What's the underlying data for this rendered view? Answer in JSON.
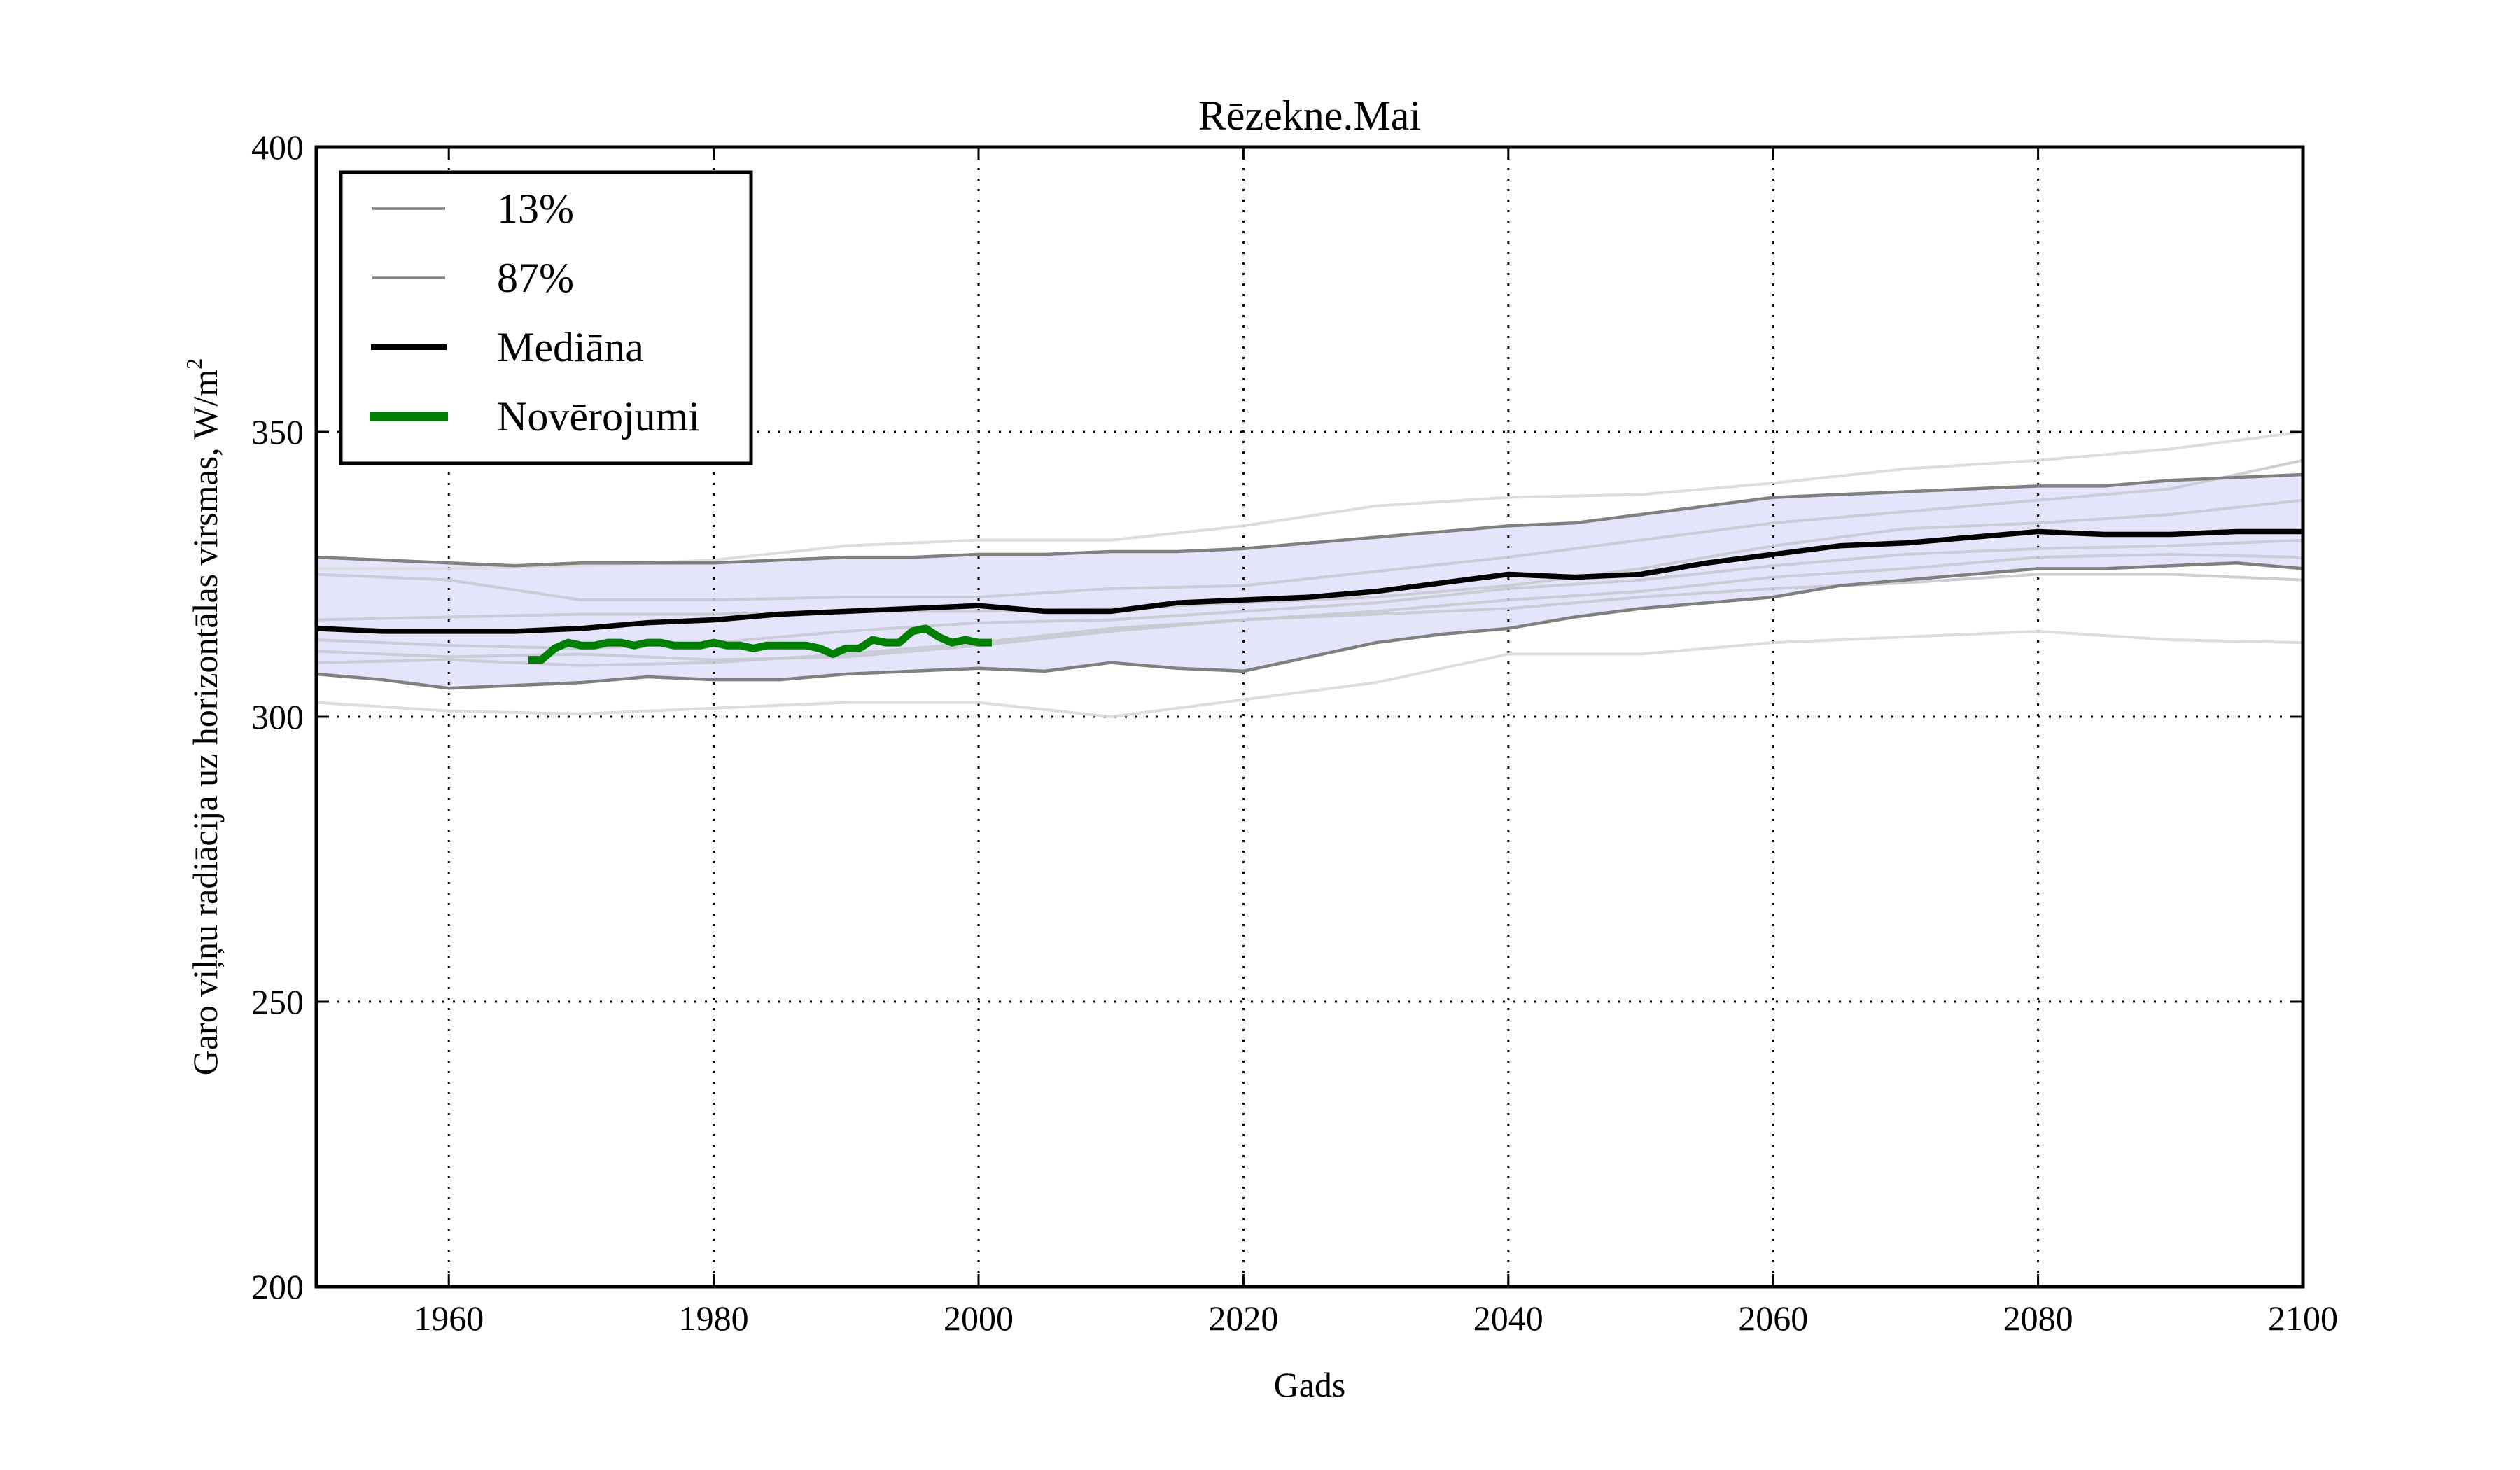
{
  "chart_data": {
    "type": "line",
    "title": "Rēzekne.Mai",
    "xlabel": "Gads",
    "ylabel": "Garo viļņu radiācija uz horizontālas virsmas, W/m",
    "ylabel_superscript": "2",
    "xlim": [
      1950,
      2100
    ],
    "ylim": [
      200,
      400
    ],
    "x_ticks": [
      1960,
      1980,
      2000,
      2020,
      2040,
      2060,
      2080,
      2100
    ],
    "x_tick_labels": [
      "1960",
      "1980",
      "2000",
      "2020",
      "2040",
      "2060",
      "2080",
      "2100"
    ],
    "y_ticks": [
      200,
      250,
      300,
      350,
      400
    ],
    "y_tick_labels": [
      "200",
      "250",
      "300",
      "350",
      "400"
    ],
    "grid": true,
    "legend_position": "top-left",
    "band_color": "#e4e4fb",
    "series": [
      {
        "name": "13%",
        "color": "#808080",
        "x": [
          1950,
          1955,
          1960,
          1965,
          1970,
          1975,
          1980,
          1985,
          1990,
          1995,
          2000,
          2005,
          2010,
          2015,
          2020,
          2025,
          2030,
          2035,
          2040,
          2045,
          2050,
          2055,
          2060,
          2065,
          2070,
          2075,
          2080,
          2085,
          2090,
          2095,
          2100
        ],
        "values": [
          307.5,
          306.5,
          305.0,
          305.5,
          306.0,
          307.0,
          306.5,
          306.5,
          307.5,
          308.0,
          308.5,
          308.0,
          309.5,
          308.5,
          308.0,
          310.5,
          313.0,
          314.5,
          315.5,
          317.5,
          319.0,
          320.0,
          321.0,
          323.0,
          324.0,
          325.0,
          326.0,
          326.0,
          326.5,
          327.0,
          326.0
        ]
      },
      {
        "name": "87%",
        "color": "#808080",
        "x": [
          1950,
          1955,
          1960,
          1965,
          1970,
          1975,
          1980,
          1985,
          1990,
          1995,
          2000,
          2005,
          2010,
          2015,
          2020,
          2025,
          2030,
          2035,
          2040,
          2045,
          2050,
          2055,
          2060,
          2065,
          2070,
          2075,
          2080,
          2085,
          2090,
          2095,
          2100
        ],
        "values": [
          328.0,
          327.5,
          327.0,
          326.5,
          327.0,
          327.0,
          327.0,
          327.5,
          328.0,
          328.0,
          328.5,
          328.5,
          329.0,
          329.0,
          329.5,
          330.5,
          331.5,
          332.5,
          333.5,
          334.0,
          335.5,
          337.0,
          338.5,
          339.0,
          339.5,
          340.0,
          340.5,
          340.5,
          341.5,
          342.0,
          342.5
        ]
      },
      {
        "name": "Mediāna",
        "color": "#000000",
        "x": [
          1950,
          1955,
          1960,
          1965,
          1970,
          1975,
          1980,
          1985,
          1990,
          1995,
          2000,
          2005,
          2010,
          2015,
          2020,
          2025,
          2030,
          2035,
          2040,
          2045,
          2050,
          2055,
          2060,
          2065,
          2070,
          2075,
          2080,
          2085,
          2090,
          2095,
          2100
        ],
        "values": [
          315.5,
          315.0,
          315.0,
          315.0,
          315.5,
          316.5,
          317.0,
          318.0,
          318.5,
          319.0,
          319.5,
          318.5,
          318.5,
          320.0,
          320.5,
          321.0,
          322.0,
          323.5,
          325.0,
          324.5,
          325.0,
          327.0,
          328.5,
          330.0,
          330.5,
          331.5,
          332.5,
          332.0,
          332.0,
          332.5,
          332.5
        ]
      },
      {
        "name": "Novērojumi",
        "color": "#008000",
        "x": [
          1966,
          1967,
          1968,
          1969,
          1970,
          1971,
          1972,
          1973,
          1974,
          1975,
          1976,
          1977,
          1978,
          1979,
          1980,
          1981,
          1982,
          1983,
          1984,
          1985,
          1986,
          1987,
          1988,
          1989,
          1990,
          1991,
          1992,
          1993,
          1994,
          1995,
          1996,
          1997,
          1998,
          1999,
          2000,
          2001
        ],
        "values": [
          310.0,
          310.0,
          312.0,
          313.0,
          312.5,
          312.5,
          313.0,
          313.0,
          312.5,
          313.0,
          313.0,
          312.5,
          312.5,
          312.5,
          313.0,
          312.5,
          312.5,
          312.0,
          312.5,
          312.5,
          312.5,
          312.5,
          312.0,
          311.0,
          312.0,
          312.0,
          313.5,
          313.0,
          313.0,
          315.0,
          315.5,
          314.0,
          313.0,
          313.5,
          313.0,
          313.0
        ]
      }
    ],
    "ensemble_members": [
      {
        "name": "member-1",
        "color": "#d9d9d9",
        "x": [
          1950,
          1960,
          1970,
          1980,
          1990,
          2000,
          2010,
          2020,
          2030,
          2040,
          2050,
          2060,
          2070,
          2080,
          2090,
          2100
        ],
        "values": [
          302.5,
          301.0,
          300.5,
          301.5,
          302.5,
          302.5,
          300.0,
          303.0,
          306.0,
          311.0,
          311.0,
          313.0,
          314.0,
          315.0,
          313.5,
          313.0
        ]
      },
      {
        "name": "member-2",
        "color": "#d9d9d9",
        "x": [
          1950,
          1960,
          1970,
          1980,
          1990,
          2000,
          2010,
          2020,
          2030,
          2040,
          2050,
          2060,
          2070,
          2080,
          2090,
          2100
        ],
        "values": [
          326.0,
          326.0,
          326.5,
          327.5,
          330.0,
          331.0,
          331.0,
          333.5,
          337.0,
          338.5,
          339.0,
          341.0,
          343.5,
          345.0,
          347.0,
          350.0
        ]
      },
      {
        "name": "member-3",
        "color": "#c8c8d0",
        "x": [
          1950,
          1960,
          1970,
          1980,
          1990,
          2000,
          2010,
          2020,
          2030,
          2040,
          2050,
          2060,
          2070,
          2080,
          2090,
          2100
        ],
        "values": [
          325.0,
          324.0,
          320.5,
          320.5,
          321.0,
          321.0,
          322.5,
          323.0,
          325.5,
          328.0,
          331.0,
          334.0,
          336.0,
          338.0,
          340.0,
          345.0
        ]
      },
      {
        "name": "member-4",
        "color": "#c8c8d0",
        "x": [
          1950,
          1960,
          1970,
          1980,
          1990,
          2000,
          2010,
          2020,
          2030,
          2040,
          2050,
          2060,
          2070,
          2080,
          2090,
          2100
        ],
        "values": [
          317.0,
          317.5,
          318.0,
          318.0,
          318.5,
          318.5,
          319.0,
          320.0,
          321.0,
          323.0,
          326.0,
          330.0,
          333.0,
          334.0,
          335.5,
          338.0
        ]
      },
      {
        "name": "member-5",
        "color": "#c8c8d0",
        "x": [
          1950,
          1960,
          1970,
          1980,
          1990,
          2000,
          2010,
          2020,
          2030,
          2040,
          2050,
          2060,
          2070,
          2080,
          2090,
          2100
        ],
        "values": [
          313.5,
          312.5,
          312.0,
          313.0,
          315.0,
          316.5,
          317.0,
          318.5,
          320.0,
          322.5,
          324.0,
          326.5,
          328.5,
          329.5,
          330.0,
          331.0
        ]
      },
      {
        "name": "member-6",
        "color": "#c8c8d0",
        "x": [
          1950,
          1960,
          1970,
          1980,
          1990,
          2000,
          2010,
          2020,
          2030,
          2040,
          2050,
          2060,
          2070,
          2080,
          2090,
          2100
        ],
        "values": [
          311.5,
          310.5,
          311.0,
          310.0,
          310.5,
          312.5,
          315.0,
          317.0,
          318.5,
          320.5,
          322.0,
          324.5,
          326.0,
          328.0,
          328.5,
          328.0
        ]
      },
      {
        "name": "member-7",
        "color": "#c8c8d0",
        "x": [
          1950,
          1960,
          1970,
          1980,
          1990,
          2000,
          2010,
          2020,
          2030,
          2040,
          2050,
          2060,
          2070,
          2080,
          2090,
          2100
        ],
        "values": [
          309.5,
          310.0,
          309.0,
          309.5,
          311.0,
          313.0,
          315.5,
          317.0,
          318.0,
          319.0,
          321.0,
          322.5,
          323.5,
          325.0,
          325.0,
          324.0
        ]
      }
    ],
    "legend": [
      {
        "label": "13%",
        "color": "#808080"
      },
      {
        "label": "87%",
        "color": "#808080"
      },
      {
        "label": "Mediāna",
        "color": "#000000"
      },
      {
        "label": "Novērojumi",
        "color": "#008000"
      }
    ]
  }
}
